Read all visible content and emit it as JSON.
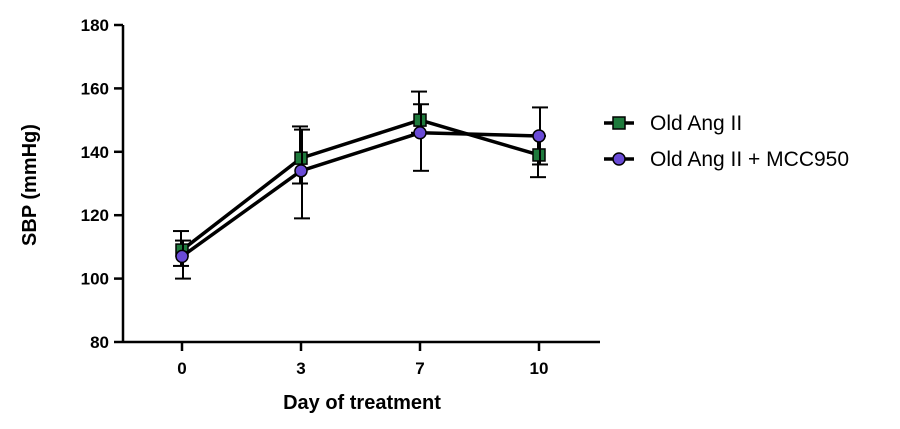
{
  "chart_data": {
    "type": "line",
    "title": "",
    "xlabel": "Day of treatment",
    "ylabel": "SBP (mmHg)",
    "categories": [
      "0",
      "3",
      "7",
      "10"
    ],
    "ylim": [
      80,
      180
    ],
    "yticks": [
      "80",
      "100",
      "120",
      "140",
      "160",
      "180"
    ],
    "legend_position": "right",
    "series": [
      {
        "name": "Old Ang II",
        "marker": "square",
        "marker_color": "#1e7a3c",
        "values": [
          109,
          138,
          150,
          139
        ],
        "err_upper": [
          115,
          148,
          159,
          145
        ],
        "err_lower": [
          104,
          130,
          146,
          132
        ]
      },
      {
        "name": "Old Ang II + MCC950",
        "marker": "circle",
        "marker_color": "#6a4bd6",
        "values": [
          107,
          134,
          146,
          145
        ],
        "err_upper": [
          112,
          147,
          155,
          154
        ],
        "err_lower": [
          100,
          119,
          134,
          136
        ]
      }
    ]
  }
}
